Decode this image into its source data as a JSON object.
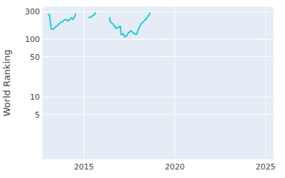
{
  "chart_data": {
    "type": "line",
    "y_label": "World Ranking",
    "color": "#1ecbd0",
    "log": "y",
    "grid": true,
    "x": [
      2013.0,
      2013.1,
      2013.2,
      2013.3,
      2013.4,
      2013.5,
      2013.6,
      2013.7,
      2013.8,
      2013.9,
      2014.0,
      2014.1,
      2014.2,
      2014.3,
      2014.4,
      2014.5,
      2014.55,
      2014.6,
      2015.25,
      2015.4,
      2015.55,
      2015.65,
      2015.8,
      2016.4,
      2016.45,
      2016.55,
      2016.65,
      2016.75,
      2016.9,
      2017.0,
      2017.05,
      2017.15,
      2017.25,
      2017.35,
      2017.45,
      2017.6,
      2017.75,
      2017.9,
      2018.0,
      2018.15,
      2018.3,
      2018.45,
      2018.6,
      2018.65
    ],
    "values": [
      270,
      265,
      150,
      148,
      160,
      170,
      180,
      195,
      200,
      215,
      220,
      210,
      215,
      235,
      220,
      255,
      280,
      null,
      235,
      245,
      265,
      290,
      null,
      240,
      200,
      190,
      175,
      155,
      160,
      168,
      120,
      125,
      110,
      115,
      130,
      140,
      125,
      122,
      150,
      185,
      205,
      230,
      270,
      290
    ],
    "xlim": [
      2012.73,
      2025.4
    ],
    "xticks": [
      2015,
      2020,
      2025
    ],
    "ylim": [
      0.86,
      360
    ],
    "yticks": [
      5,
      10,
      50,
      100,
      300
    ]
  }
}
